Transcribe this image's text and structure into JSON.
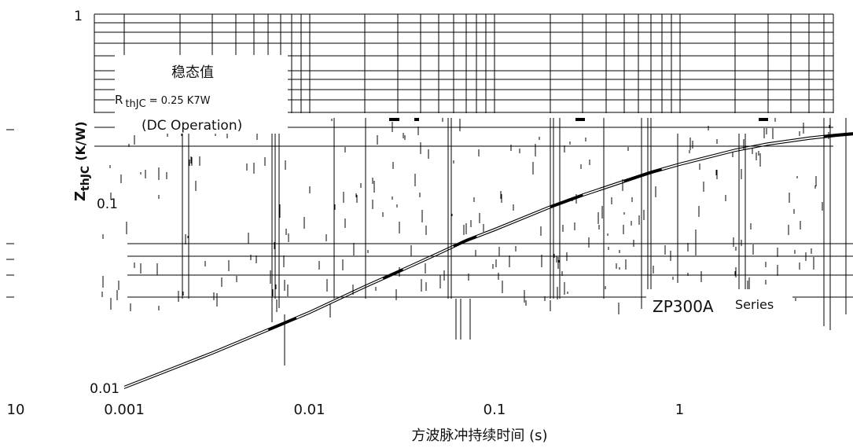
{
  "chart_data": {
    "type": "line",
    "scale": "log-log",
    "x_unit_label": "方波脉冲持续时间 (s)",
    "y_unit_label": "Z",
    "y_unit_sub": "thJC",
    "y_unit_tail": "(K/W)",
    "x_ticks": [
      "0.001",
      "0.01",
      "0.1",
      "1",
      "10"
    ],
    "y_ticks": [
      "0.01",
      "0.1",
      "1"
    ],
    "xlim": [
      0.001,
      10
    ],
    "ylim": [
      0.01,
      1
    ],
    "grid": true,
    "annotation": {
      "line1": "稳态值",
      "rth_prefix": "R",
      "rth_sub": "thJC",
      "rth_value": "= 0.25 K7W",
      "line3": "(DC Operation)"
    },
    "series_label_main": "ZP300A",
    "series_label_tail": "Series",
    "series": [
      {
        "x": [
          0.001,
          0.002,
          0.003,
          0.005,
          0.007,
          0.01,
          0.02,
          0.03,
          0.05,
          0.07,
          0.1,
          0.2,
          0.3,
          0.5,
          0.7,
          1,
          2,
          3,
          5,
          7,
          10
        ],
        "y": [
          0.0105,
          0.0137,
          0.016,
          0.0197,
          0.0226,
          0.0262,
          0.036,
          0.043,
          0.054,
          0.063,
          0.072,
          0.095,
          0.11,
          0.13,
          0.145,
          0.16,
          0.19,
          0.205,
          0.22,
          0.228,
          0.235
        ]
      }
    ]
  }
}
